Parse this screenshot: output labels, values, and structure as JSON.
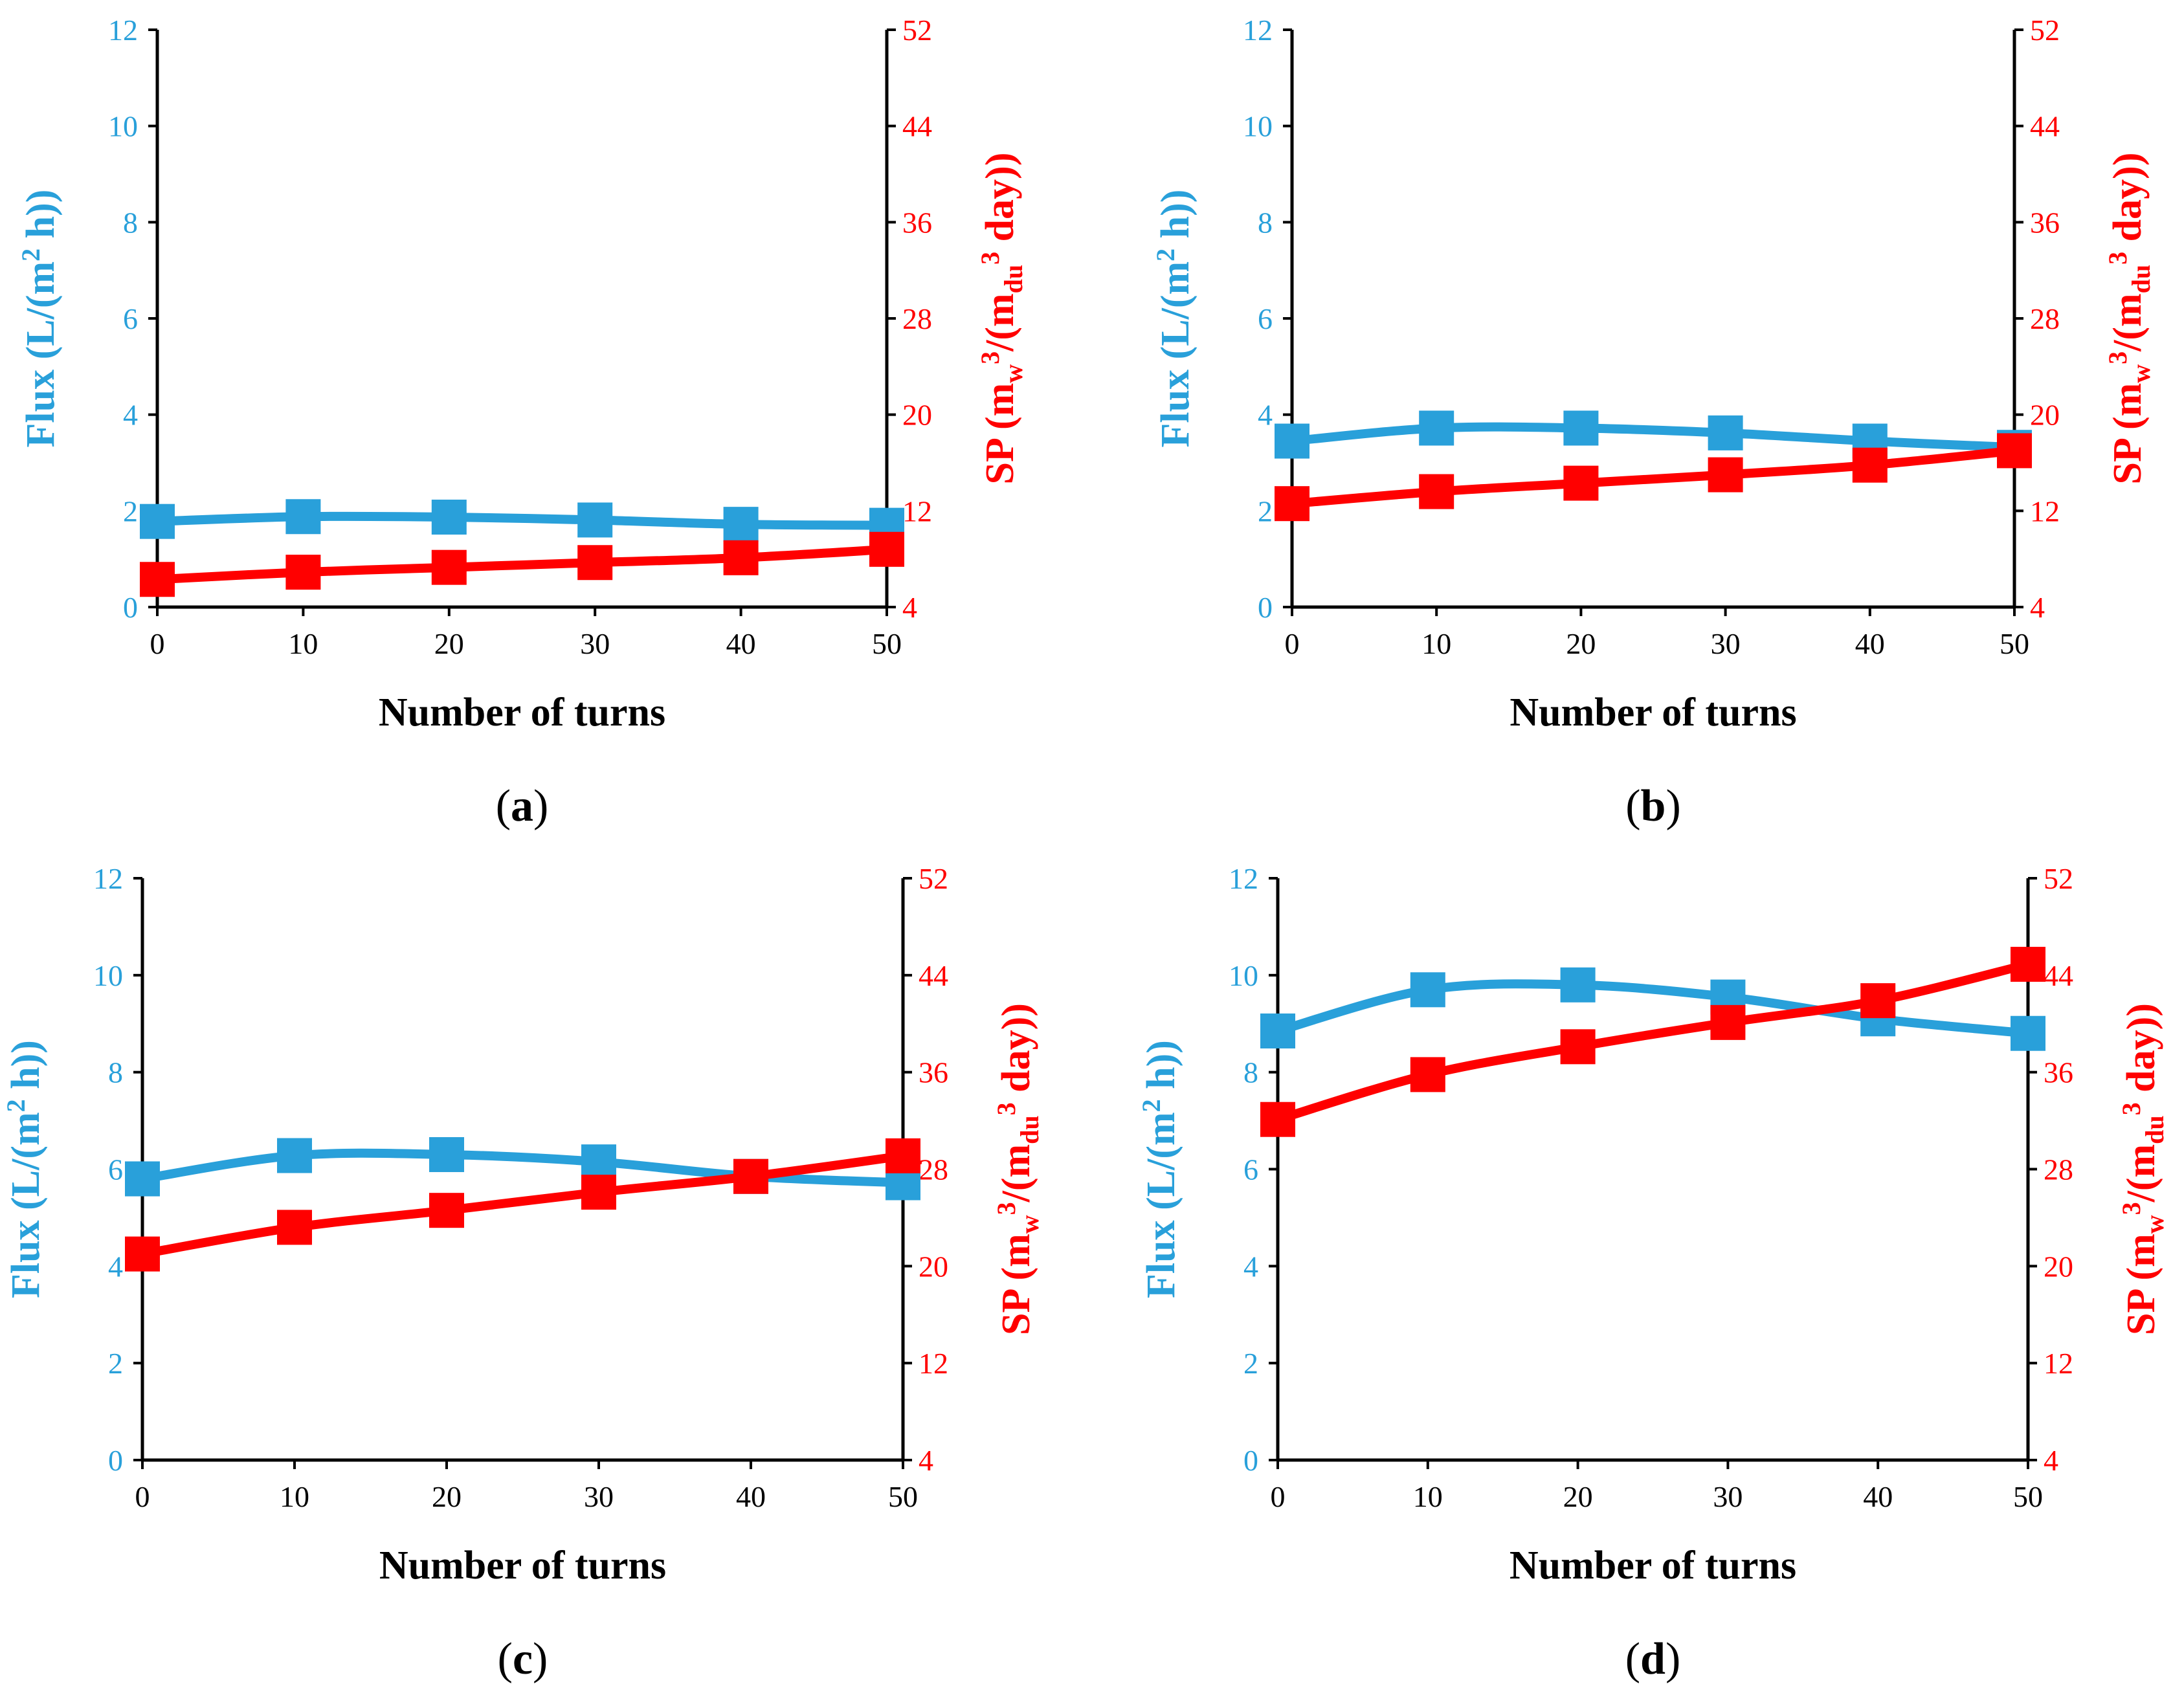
{
  "colors": {
    "flux": "#29A0DA",
    "sp": "#FF0000",
    "axis": "#000000"
  },
  "chart_data": [
    {
      "type": "line",
      "panel": "a",
      "xlabel": "Number of turns",
      "ylabel_left": {
        "main": "Flux (L/(m",
        "sup": "2",
        "tail": " h))"
      },
      "ylabel_right": {
        "a": "SP (m",
        "sub1": "w",
        "sup1": "3",
        "b": "/(m",
        "sub2": "du",
        "sup2": "3",
        "c": " day))"
      },
      "x": [
        0,
        10,
        20,
        30,
        40,
        50
      ],
      "xlim": [
        0,
        50
      ],
      "x_ticks": [
        "0",
        "10",
        "20",
        "30",
        "40",
        "50"
      ],
      "ylim_left": [
        0,
        12
      ],
      "y_ticks_left": [
        "0",
        "2",
        "4",
        "6",
        "8",
        "10",
        "12"
      ],
      "ylim_right": [
        4,
        52
      ],
      "y_ticks_right": [
        "4",
        "12",
        "20",
        "28",
        "36",
        "44",
        "52"
      ],
      "series": [
        {
          "name": "Flux",
          "axis": "left",
          "values": [
            1.78,
            1.88,
            1.87,
            1.81,
            1.72,
            1.7
          ]
        },
        {
          "name": "SP",
          "axis": "right",
          "values": [
            6.3,
            6.9,
            7.3,
            7.7,
            8.1,
            8.8
          ]
        }
      ]
    },
    {
      "type": "line",
      "panel": "b",
      "xlabel": "Number of turns",
      "ylabel_left": {
        "main": "Flux (L/(m",
        "sup": "2",
        "tail": " h))"
      },
      "ylabel_right": {
        "a": "SP (m",
        "sub1": "w",
        "sup1": "3",
        "b": "/(m",
        "sub2": "du",
        "sup2": "3",
        "c": " day))"
      },
      "x": [
        0,
        10,
        20,
        30,
        40,
        50
      ],
      "xlim": [
        0,
        50
      ],
      "x_ticks": [
        "0",
        "10",
        "20",
        "30",
        "40",
        "50"
      ],
      "ylim_left": [
        0,
        12
      ],
      "y_ticks_left": [
        "0",
        "2",
        "4",
        "6",
        "8",
        "10",
        "12"
      ],
      "ylim_right": [
        4,
        52
      ],
      "y_ticks_right": [
        "4",
        "12",
        "20",
        "28",
        "36",
        "44",
        "52"
      ],
      "series": [
        {
          "name": "Flux",
          "axis": "left",
          "values": [
            3.45,
            3.72,
            3.72,
            3.62,
            3.45,
            3.32
          ]
        },
        {
          "name": "SP",
          "axis": "right",
          "values": [
            12.6,
            13.6,
            14.3,
            15.0,
            15.8,
            17.0
          ]
        }
      ]
    },
    {
      "type": "line",
      "panel": "c",
      "xlabel": "Number of turns",
      "ylabel_left": {
        "main": "Flux (L/(m",
        "sup": "2",
        "tail": " h))"
      },
      "ylabel_right": {
        "a": "SP (m",
        "sub1": "w",
        "sup1": "3",
        "b": "/(m",
        "sub2": "du",
        "sup2": "3",
        "c": " day))"
      },
      "x": [
        0,
        10,
        20,
        30,
        40,
        50
      ],
      "xlim": [
        0,
        50
      ],
      "x_ticks": [
        "0",
        "10",
        "20",
        "30",
        "40",
        "50"
      ],
      "ylim_left": [
        0,
        12
      ],
      "y_ticks_left": [
        "0",
        "2",
        "4",
        "6",
        "8",
        "10",
        "12"
      ],
      "ylim_right": [
        4,
        52
      ],
      "y_ticks_right": [
        "4",
        "12",
        "20",
        "28",
        "36",
        "44",
        "52"
      ],
      "series": [
        {
          "name": "Flux",
          "axis": "left",
          "values": [
            5.8,
            6.28,
            6.3,
            6.15,
            5.85,
            5.72
          ]
        },
        {
          "name": "SP",
          "axis": "right",
          "values": [
            21.0,
            23.2,
            24.6,
            26.1,
            27.4,
            29.1
          ]
        }
      ]
    },
    {
      "type": "line",
      "panel": "d",
      "xlabel": "Number of turns",
      "ylabel_left": {
        "main": "Flux (L/(m",
        "sup": "2",
        "tail": " h))"
      },
      "ylabel_right": {
        "a": "SP (m",
        "sub1": "w",
        "sup1": "3",
        "b": "/(m",
        "sub2": "du",
        "sup2": "3",
        "c": " day))"
      },
      "x": [
        0,
        10,
        20,
        30,
        40,
        50
      ],
      "xlim": [
        0,
        50
      ],
      "x_ticks": [
        "0",
        "10",
        "20",
        "30",
        "40",
        "50"
      ],
      "ylim_left": [
        0,
        12
      ],
      "y_ticks_left": [
        "0",
        "2",
        "4",
        "6",
        "8",
        "10",
        "12"
      ],
      "ylim_right": [
        4,
        52
      ],
      "y_ticks_right": [
        "4",
        "12",
        "20",
        "28",
        "36",
        "44",
        "52"
      ],
      "series": [
        {
          "name": "Flux",
          "axis": "left",
          "values": [
            8.85,
            9.7,
            9.8,
            9.55,
            9.1,
            8.8
          ]
        },
        {
          "name": "SP",
          "axis": "right",
          "values": [
            32.1,
            35.8,
            38.1,
            40.1,
            41.9,
            44.9
          ]
        }
      ]
    }
  ]
}
